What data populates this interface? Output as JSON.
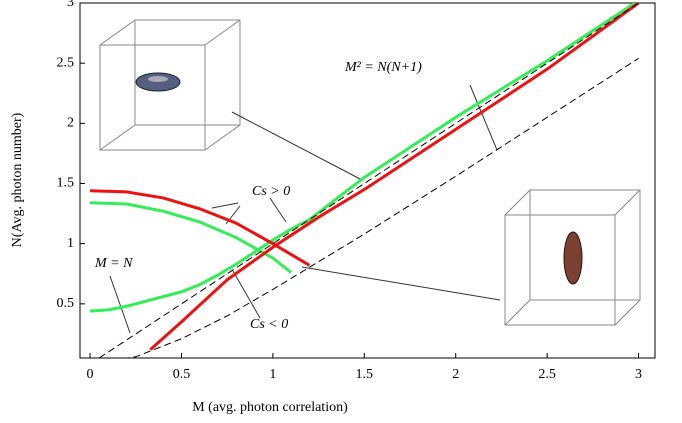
{
  "chart_data": {
    "type": "line",
    "x_label": "M (avg. photon correlation)",
    "y_label": "N(Avg. photon number)",
    "xlim": [
      -0.055,
      3.09
    ],
    "ylim": [
      0.05,
      3
    ],
    "xticks": [
      0,
      0.5,
      1,
      1.5,
      2,
      2.5,
      3
    ],
    "yticks": [
      0.5,
      1,
      1.5,
      2,
      2.5,
      3
    ],
    "grid": false,
    "annotations": [
      "Cs > 0",
      "Cs < 0",
      "M = N",
      "M² = N(N+1)"
    ],
    "series": [
      {
        "color": "#33ee55",
        "dash": false,
        "x": [
          0,
          0.1,
          0.2,
          0.3,
          0.4,
          0.5,
          0.6,
          0.7,
          0.8,
          0.9,
          1.0,
          1.1,
          1.2,
          1.5,
          2.0,
          2.5,
          3.0
        ],
        "values": [
          0.44,
          0.45,
          0.48,
          0.52,
          0.56,
          0.6,
          0.66,
          0.74,
          0.83,
          0.93,
          1.03,
          1.12,
          1.2,
          1.55,
          2.05,
          2.52,
          3.02
        ]
      },
      {
        "color": "#33ee55",
        "dash": false,
        "x": [
          0,
          0.2,
          0.4,
          0.6,
          0.8,
          1.0,
          1.1
        ],
        "values": [
          1.34,
          1.33,
          1.27,
          1.18,
          1.05,
          0.88,
          0.76
        ]
      },
      {
        "color": "#ee1111",
        "dash": false,
        "x": [
          0,
          0.2,
          0.4,
          0.6,
          0.8,
          1.0,
          1.2
        ],
        "values": [
          1.44,
          1.43,
          1.38,
          1.29,
          1.17,
          1.0,
          0.82
        ]
      },
      {
        "color": "#ee1111",
        "dash": false,
        "x": [
          0.33,
          0.5,
          0.75,
          1.0,
          1.25,
          1.5,
          2.0,
          2.5,
          3.0
        ],
        "values": [
          0.12,
          0.35,
          0.7,
          0.97,
          1.22,
          1.45,
          1.95,
          2.45,
          3.0
        ]
      },
      {
        "color": "#000000",
        "dash": true,
        "x": [
          0,
          3
        ],
        "values": [
          0,
          3
        ]
      },
      {
        "color": "#000000",
        "dash": true,
        "x": [
          0,
          0.25,
          0.5,
          0.75,
          1,
          1.5,
          2,
          2.5,
          3
        ],
        "values": [
          0,
          0.06,
          0.21,
          0.4,
          0.62,
          1.08,
          1.56,
          2.05,
          2.54
        ]
      }
    ]
  }
}
